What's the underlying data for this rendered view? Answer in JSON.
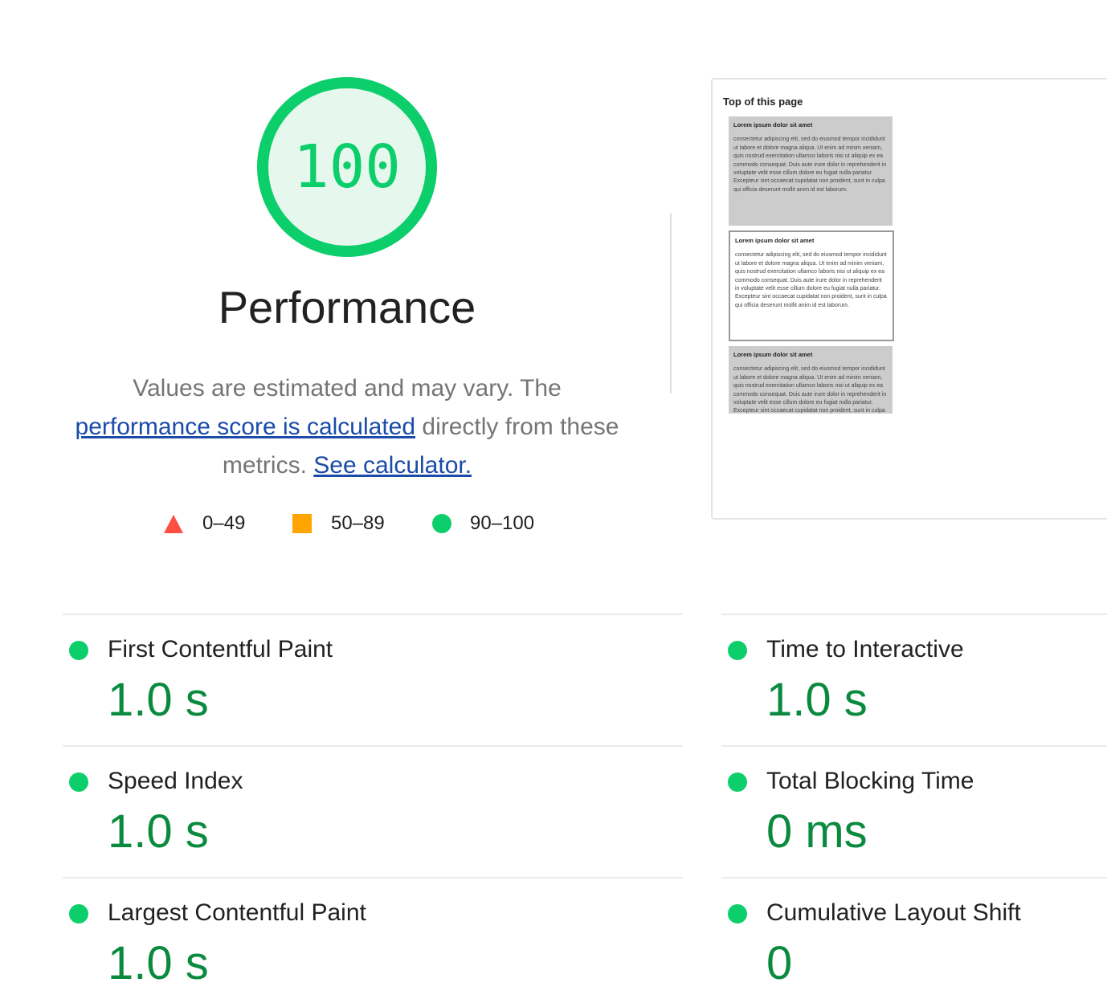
{
  "score": {
    "value": "100",
    "color": "#0cce6b",
    "fill": "#e6f8ee",
    "level": 1.0
  },
  "category_title": "Performance",
  "description": {
    "part1": "Values are estimated and may vary. The ",
    "link1": "performance score is calculated",
    "part2": " directly from these metrics. ",
    "link2": "See calculator."
  },
  "legend": [
    {
      "icon": "triangle-icon",
      "color": "#ff4e42",
      "label": "0–49"
    },
    {
      "icon": "square-icon",
      "color": "#ffa400",
      "label": "50–89"
    },
    {
      "icon": "circle-icon",
      "color": "#0cce6b",
      "label": "90–100"
    }
  ],
  "screenshot": {
    "heading": "Top of this page",
    "block_title": "Lorem ipsum dolor sit amet",
    "block_text": "consectetur adipiscing elit, sed do eiusmod tempor incididunt ut labore et dolore magna aliqua. Ut enim ad minim veniam, quis nostrud exercitation ullamco laboris nisi ut aliquip ex ea commodo consequat. Duis aute irure dolor in reprehenderit in voluptate velit esse cillum dolore eu fugiat nulla pariatur. Excepteur sint occaecat cupidatat non proident, sunt in culpa qui officia deserunt mollit anim id est laborum."
  },
  "metrics": [
    {
      "title": "First Contentful Paint",
      "value": "1.0 s"
    },
    {
      "title": "Time to Interactive",
      "value": "1.0 s"
    },
    {
      "title": "Speed Index",
      "value": "1.0 s"
    },
    {
      "title": "Total Blocking Time",
      "value": "0 ms"
    },
    {
      "title": "Largest Contentful Paint",
      "value": "1.0 s"
    },
    {
      "title": "Cumulative Layout Shift",
      "value": "0"
    }
  ]
}
